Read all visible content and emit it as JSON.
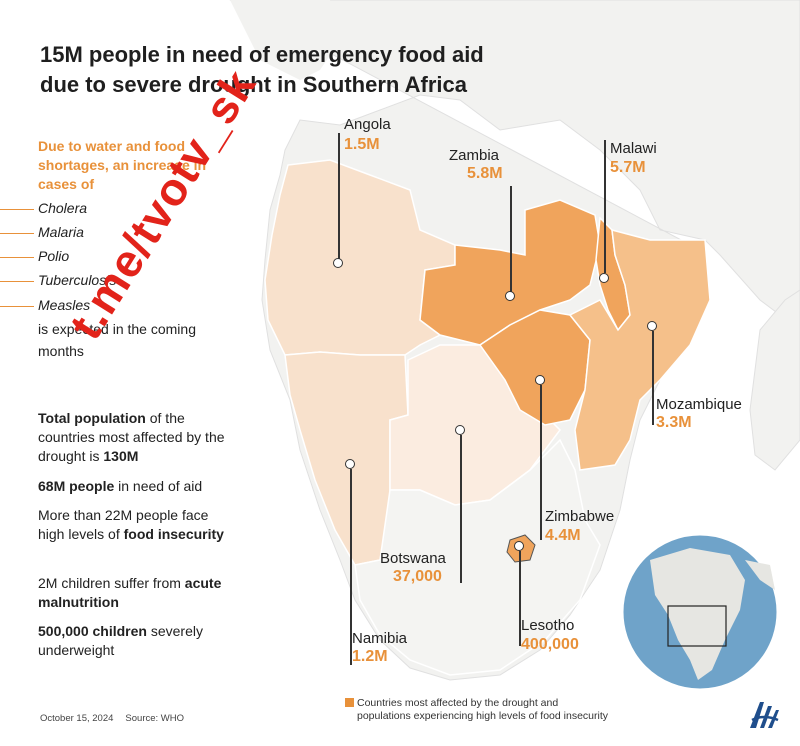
{
  "title": {
    "line1": "15M people in need of emergency food aid",
    "line2": "due to severe drought in Southern Africa"
  },
  "intro": "Due to water and food shortages, an increase in cases of",
  "diseases": [
    "Cholera",
    "Malaria",
    "Polio",
    "Tuberculosis",
    "Measles"
  ],
  "expected_text": "is expected in the coming months",
  "stats": {
    "s1": {
      "b1": "Total population",
      "t1": " of the countries most affected by the drought is ",
      "b2": "130M"
    },
    "s2": {
      "b1": "68M people",
      "t1": " in need of aid"
    },
    "s3": {
      "t1": "More than 22M people face high levels of ",
      "b1": "food insecurity"
    },
    "s4": {
      "t1": "2M children suffer from ",
      "b1": "acute malnutrition"
    },
    "s5": {
      "b1": "500,000 children",
      "t1": " severely underweight"
    }
  },
  "countries": {
    "angola": {
      "name": "Angola",
      "value": "1.5M"
    },
    "zambia": {
      "name": "Zambia",
      "value": "5.8M"
    },
    "malawi": {
      "name": "Malawi",
      "value": "5.7M"
    },
    "mozambique": {
      "name": "Mozambique",
      "value": "3.3M"
    },
    "zimbabwe": {
      "name": "Zimbabwe",
      "value": "4.4M"
    },
    "botswana": {
      "name": "Botswana",
      "value": "37,000"
    },
    "lesotho": {
      "name": "Lesotho",
      "value": "400,000"
    },
    "namibia": {
      "name": "Namibia",
      "value": "1.2M"
    }
  },
  "legend": {
    "line1": "Countries most affected by the drought and",
    "line2": "populations experiencing high levels of food insecurity"
  },
  "footer": {
    "date": "October 15, 2024",
    "source": "Source: WHO"
  },
  "watermark": "t.me/tvotv_sk",
  "colors": {
    "accent": "#e8913a",
    "high_fill": "#f0a45c",
    "mid_fill": "#f5c08a",
    "light_fill": "#f8e1cc",
    "lighter_fill": "#fbece0",
    "land": "#f2f2f0",
    "ocean": "#ffffff",
    "globe_ocean": "#6fa3c9",
    "watermark": "#e2231a"
  },
  "logo_icon": "aa-agency-logo"
}
